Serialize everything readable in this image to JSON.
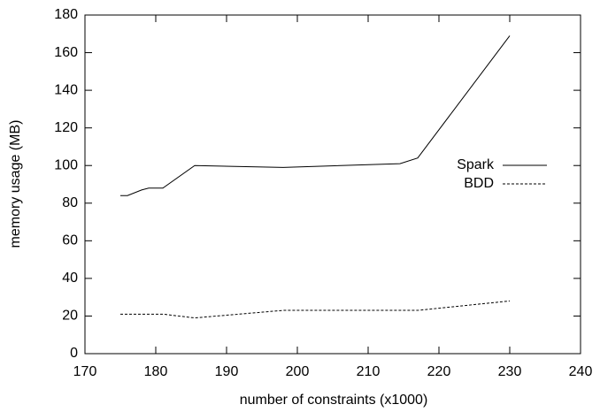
{
  "chart_data": {
    "type": "line",
    "xlabel": "number of constraints (x1000)",
    "ylabel": "memory usage (MB)",
    "xlim": [
      170,
      240
    ],
    "xticks": [
      170,
      180,
      190,
      200,
      210,
      220,
      230,
      240
    ],
    "ylim": [
      0,
      180
    ],
    "yticks": [
      0,
      20,
      40,
      60,
      80,
      100,
      120,
      140,
      160,
      180
    ],
    "legend": "right",
    "series": [
      {
        "name": "Spark",
        "color": "#000000",
        "dash": "none",
        "x": [
          175,
          176,
          178,
          179,
          181,
          185.5,
          198,
          214.5,
          217,
          230
        ],
        "values": [
          84,
          84,
          87,
          88,
          88,
          100,
          99,
          101,
          104,
          169
        ]
      },
      {
        "name": "BDD",
        "color": "#000000",
        "dash": "3,2",
        "x": [
          175,
          181,
          185.5,
          198,
          217,
          230
        ],
        "values": [
          21,
          21,
          19,
          23,
          23,
          28
        ]
      }
    ]
  }
}
